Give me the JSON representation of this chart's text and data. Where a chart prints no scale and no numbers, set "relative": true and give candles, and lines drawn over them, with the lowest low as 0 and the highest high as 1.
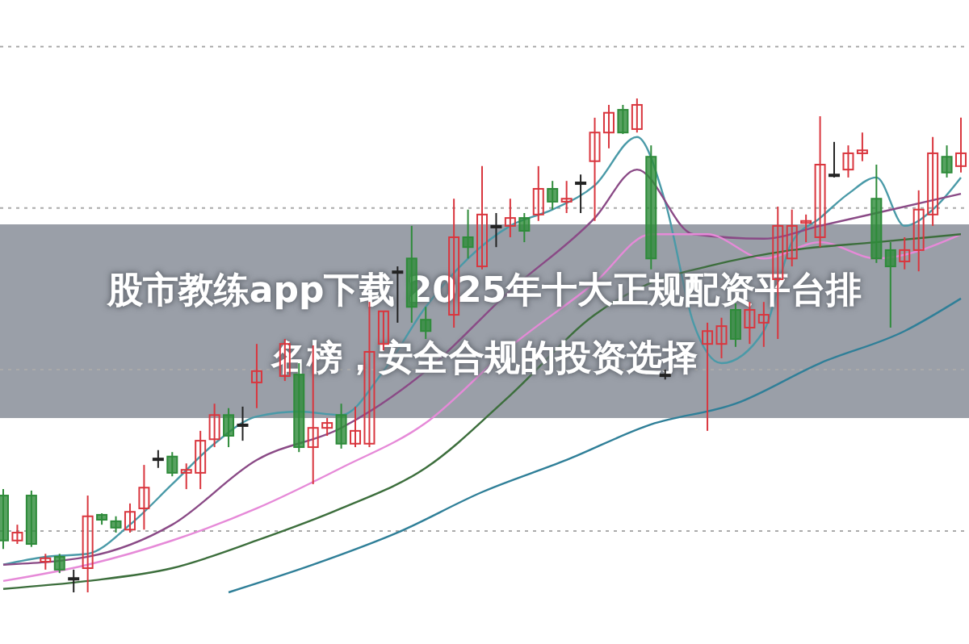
{
  "chart_data": {
    "type": "candlestick",
    "title": "股市教练app下载 2025年十大正规配资平台排名榜，安全合规的投资选择",
    "relative": true,
    "grid": false,
    "categories": [
      null,
      null,
      null,
      null,
      null,
      null,
      null,
      null,
      null,
      null,
      null,
      null,
      null,
      null,
      null,
      null,
      null,
      null,
      null,
      null,
      null,
      null,
      null,
      null,
      null,
      null,
      null,
      null,
      null,
      null,
      null,
      null,
      null,
      null,
      null,
      null,
      null,
      null,
      null,
      null,
      null,
      null,
      null,
      null,
      null,
      null,
      null,
      null,
      null,
      null,
      null,
      null,
      null,
      null,
      null,
      null,
      null,
      null,
      null,
      null,
      null,
      null,
      null,
      null,
      null,
      null,
      null,
      null,
      null
    ],
    "ref_lines": [
      {
        "axis": "y",
        "value": 1.105,
        "color": "#aaaaaa",
        "line_style": "dotted"
      },
      {
        "axis": "y",
        "value": 0.778,
        "color": "#aaaaaa",
        "line_style": "dotted"
      },
      {
        "axis": "y",
        "value": 0.451,
        "color": "#aaaaaa",
        "line_style": "dotted"
      },
      {
        "axis": "y",
        "value": 0.124,
        "color": "#aaaaaa",
        "line_style": "dotted"
      }
    ],
    "series": [
      {
        "type": "line",
        "color": "#4a9aa8",
        "values": [
          0.056,
          null,
          null,
          0.072,
          null,
          null,
          0.078,
          null,
          null,
          0.137,
          null,
          null,
          0.219,
          null,
          null,
          0.301,
          null,
          null,
          0.356,
          null,
          null,
          0.366,
          null,
          null,
          0.359,
          null,
          null,
          0.448,
          null,
          null,
          0.578,
          null,
          null,
          0.676,
          null,
          null,
          0.742,
          null,
          null,
          0.775,
          null,
          null,
          0.824,
          null,
          null,
          0.922,
          null,
          0.791,
          null,
          0.546,
          null,
          0.464,
          null,
          null,
          0.529,
          null,
          0.709,
          null,
          0.758,
          null,
          0.807,
          null,
          0.84,
          null,
          0.742,
          null,
          0.775,
          null,
          0.84
        ]
      },
      {
        "type": "line",
        "color": "#8a4a86",
        "values": [
          0.056,
          null,
          null,
          null,
          null,
          null,
          0.072,
          null,
          null,
          null,
          null,
          null,
          0.137,
          null,
          null,
          null,
          null,
          null,
          0.268,
          null,
          null,
          null,
          null,
          null,
          0.333,
          null,
          null,
          null,
          null,
          null,
          0.448,
          null,
          null,
          null,
          null,
          null,
          0.611,
          null,
          null,
          null,
          null,
          null,
          0.758,
          null,
          null,
          0.856,
          null,
          null,
          null,
          0.725,
          null,
          null,
          null,
          null,
          0.716,
          null,
          null,
          null,
          0.742,
          null,
          null,
          null,
          0.768,
          null,
          null,
          null,
          null,
          null,
          0.807
        ]
      },
      {
        "type": "line",
        "color": "#e68ad8",
        "values": [
          0.023,
          null,
          null,
          null,
          null,
          null,
          0.056,
          null,
          null,
          null,
          null,
          null,
          0.105,
          null,
          null,
          null,
          null,
          null,
          0.17,
          null,
          null,
          null,
          null,
          null,
          0.252,
          null,
          null,
          null,
          null,
          null,
          0.343,
          null,
          null,
          null,
          null,
          null,
          0.497,
          null,
          null,
          null,
          null,
          null,
          0.627,
          null,
          null,
          null,
          0.725,
          null,
          null,
          null,
          0.725,
          null,
          null,
          null,
          0.676,
          null,
          null,
          null,
          0.709,
          null,
          null,
          null,
          0.676,
          null,
          null,
          null,
          null,
          null,
          0.725
        ]
      },
      {
        "type": "line",
        "color": "#3c6e3c",
        "values": [
          0.007,
          null,
          null,
          null,
          null,
          null,
          0.023,
          null,
          null,
          null,
          null,
          null,
          0.049,
          null,
          null,
          null,
          null,
          null,
          0.105,
          null,
          null,
          null,
          null,
          null,
          0.17,
          null,
          null,
          null,
          null,
          null,
          0.252,
          null,
          null,
          null,
          null,
          null,
          0.399,
          null,
          null,
          null,
          null,
          null,
          0.562,
          null,
          null,
          null,
          0.627,
          null,
          null,
          null,
          0.66,
          null,
          null,
          null,
          null,
          null,
          0.693,
          null,
          null,
          null,
          null,
          null,
          0.709,
          null,
          null,
          null,
          null,
          null,
          0.725
        ]
      },
      {
        "type": "line",
        "color": "#2f7f98",
        "values": [
          null,
          null,
          null,
          null,
          null,
          null,
          null,
          null,
          null,
          null,
          null,
          null,
          null,
          null,
          null,
          null,
          0,
          null,
          null,
          null,
          null,
          null,
          0.056,
          null,
          null,
          null,
          null,
          null,
          0.121,
          null,
          null,
          null,
          null,
          null,
          0.203,
          null,
          null,
          null,
          null,
          null,
          0.268,
          null,
          null,
          null,
          null,
          null,
          0.34,
          null,
          null,
          null,
          null,
          null,
          0.382,
          null,
          null,
          null,
          null,
          null,
          0.464,
          null,
          null,
          null,
          null,
          null,
          0.529,
          null,
          null,
          null,
          0.595
        ]
      },
      {
        "ohlc": [
          [
            0.196,
            0.209,
            0.088,
            0.105
          ],
          [
            0.105,
            0.137,
            0.098,
            0.121
          ],
          [
            0.196,
            0.206,
            0.092,
            0.098
          ],
          [
            0.062,
            0.078,
            0.046,
            0.069
          ],
          [
            0.072,
            0.078,
            0.039,
            0.046
          ],
          [
            0.029,
            0.046,
            0,
            0.029
          ],
          [
            0.049,
            0.196,
            0,
            0.154
          ],
          [
            0.157,
            0.16,
            0.137,
            0.147
          ],
          [
            0.144,
            0.154,
            0.121,
            0.131
          ],
          [
            0.127,
            0.18,
            0.121,
            0.163
          ],
          [
            0.17,
            0.258,
            0.127,
            0.212
          ],
          [
            0.271,
            0.288,
            0.252,
            0.271
          ],
          [
            0.275,
            0.284,
            0.235,
            0.242
          ],
          [
            0.242,
            0.261,
            0.209,
            0.248
          ],
          [
            0.242,
            0.327,
            0.209,
            0.307
          ],
          [
            0.31,
            0.382,
            0.294,
            0.359
          ],
          [
            0.359,
            0.373,
            0.294,
            0.317
          ],
          [
            0.34,
            0.376,
            0.307,
            0.34
          ],
          [
            0.425,
            0.503,
            0.373,
            0.448
          ],
          null,
          [
            0.438,
            0.513,
            0.428,
            0.503
          ],
          [
            0.441,
            0.464,
            0.284,
            0.294
          ],
          [
            0.294,
            0.5,
            0.219,
            0.333
          ],
          [
            0.333,
            0.353,
            0.317,
            0.343
          ],
          [
            0.359,
            0.382,
            0.291,
            0.301
          ],
          [
            0.301,
            0.376,
            0.294,
            0.327
          ],
          [
            0.301,
            0.588,
            0.294,
            0.487
          ],
          [
            0.503,
            0.569,
            0.49,
            0.569
          ],
          [
            0.65,
            0.66,
            0.546,
            0.65
          ],
          [
            0.676,
            0.742,
            0.546,
            0.578
          ],
          [
            0.552,
            0.578,
            0.513,
            0.529
          ],
          null,
          [
            0.562,
            0.797,
            0.536,
            0.719
          ],
          [
            0.719,
            0.775,
            0.676,
            0.699
          ],
          [
            0.66,
            0.863,
            0.654,
            0.765
          ],
          [
            0.742,
            0.768,
            0.699,
            0.742
          ],
          [
            0.742,
            0.797,
            0.719,
            0.758
          ],
          [
            0.758,
            0.768,
            0.709,
            0.732
          ],
          [
            0.765,
            0.863,
            0.752,
            0.817
          ],
          [
            0.817,
            0.833,
            0.775,
            0.791
          ],
          [
            0.791,
            0.833,
            0.768,
            0.797
          ],
          [
            0.83,
            0.846,
            0.768,
            0.83
          ],
          [
            0.873,
            0.961,
            0.752,
            0.931
          ],
          [
            0.931,
            0.987,
            0.899,
            0.971
          ],
          [
            0.977,
            0.987,
            0.928,
            0.931
          ],
          [
            0.938,
            1,
            0.931,
            0.987
          ],
          [
            0.882,
            0.905,
            0.654,
            0.676
          ],
          [
            0.441,
            0.451,
            0.431,
            0.441
          ],
          null,
          null,
          [
            0.503,
            0.546,
            0.327,
            0.529
          ],
          [
            0.503,
            0.556,
            0.474,
            0.539
          ],
          [
            0.572,
            0.585,
            0.497,
            0.513
          ],
          [
            0.536,
            0.588,
            0.503,
            0.572
          ],
          [
            0.546,
            0.588,
            0.497,
            0.562
          ],
          [
            0.634,
            0.781,
            0.513,
            0.742
          ],
          [
            0.676,
            0.775,
            0.66,
            0.742
          ],
          [
            0.748,
            0.765,
            0.709,
            0.752
          ],
          [
            0.719,
            0.964,
            0.699,
            0.866
          ],
          [
            0.846,
            0.912,
            0.84,
            0.846
          ],
          [
            0.856,
            0.905,
            0.84,
            0.889
          ],
          [
            0.889,
            0.931,
            0.873,
            0.895
          ],
          [
            0.797,
            0.866,
            0.667,
            0.676
          ],
          [
            0.693,
            0.709,
            0.536,
            0.66
          ],
          [
            0.67,
            0.719,
            0.654,
            0.693
          ],
          [
            0.693,
            0.814,
            0.65,
            0.775
          ],
          [
            0.765,
            0.922,
            0.742,
            0.889
          ],
          [
            0.882,
            0.905,
            0.84,
            0.85
          ],
          [
            0.863,
            0.961,
            0.85,
            0.889
          ]
        ],
        "colors": [
          "#2e8b3a",
          "#d9363e",
          "#2e8b3a",
          "#d9363e",
          "#2e8b3a",
          "#222222",
          "#d9363e",
          "#2e8b3a",
          "#2e8b3a",
          "#d9363e",
          "#d9363e",
          "#222222",
          "#2e8b3a",
          "#d9363e",
          "#d9363e",
          "#d9363e",
          "#2e8b3a",
          "#222222",
          "#d9363e",
          null,
          "#d9363e",
          "#2e8b3a",
          "#d9363e",
          "#d9363e",
          "#2e8b3a",
          "#d9363e",
          "#d9363e",
          "#d9363e",
          "#222222",
          "#2e8b3a",
          "#2e8b3a",
          null,
          "#d9363e",
          "#2e8b3a",
          "#d9363e",
          "#222222",
          "#d9363e",
          "#2e8b3a",
          "#d9363e",
          "#2e8b3a",
          "#d9363e",
          "#222222",
          "#d9363e",
          "#d9363e",
          "#2e8b3a",
          "#d9363e",
          "#2e8b3a",
          "#222222",
          null,
          null,
          "#d9363e",
          "#d9363e",
          "#2e8b3a",
          "#d9363e",
          "#d9363e",
          "#d9363e",
          "#d9363e",
          "#d9363e",
          "#d9363e",
          "#222222",
          "#d9363e",
          "#d9363e",
          "#2e8b3a",
          "#2e8b3a",
          "#d9363e",
          "#d9363e",
          "#d9363e",
          "#2e8b3a",
          "#d9363e"
        ]
      }
    ]
  }
}
